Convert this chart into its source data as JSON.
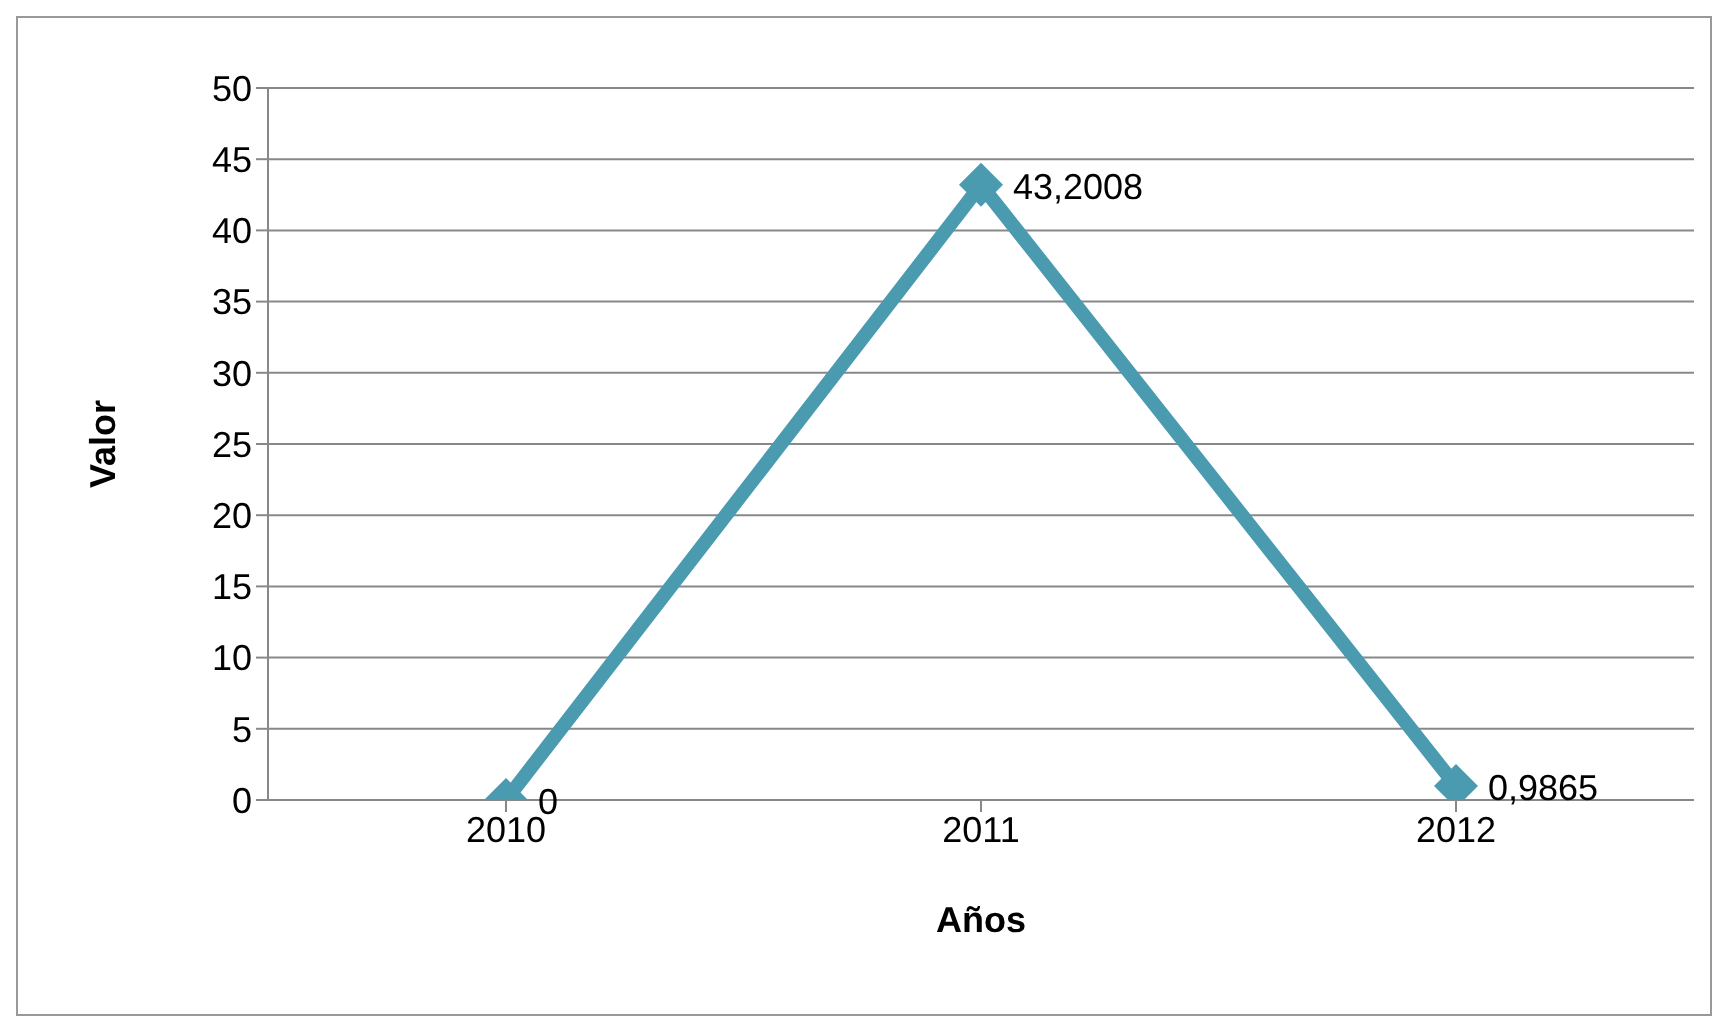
{
  "chart_data": {
    "type": "line",
    "xlabel": "Años",
    "ylabel": "Valor",
    "categories": [
      "2010",
      "2011",
      "2012"
    ],
    "series": [
      {
        "color": "#4a9bb0",
        "values": [
          0,
          43.2008,
          0.9865
        ],
        "value_labels": [
          "0",
          "43,2008",
          "0,9865"
        ]
      }
    ],
    "ylim": [
      0,
      50
    ],
    "yticks": [
      0,
      5,
      10,
      15,
      20,
      25,
      30,
      35,
      40,
      45,
      50
    ],
    "grid": "y",
    "legend": false,
    "marker": "diamond",
    "line_style": "solid"
  }
}
